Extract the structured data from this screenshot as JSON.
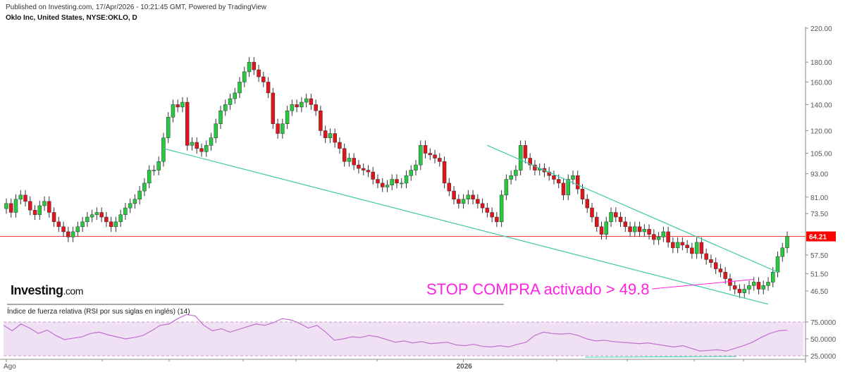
{
  "header": {
    "published": "Published on Investing.com, 17/Apr/2026 - 10:21:45 GMT, Powered by TradingView",
    "instrument": "Oklo Inc, United States, NYSE:OKLO, D"
  },
  "logo": {
    "text": "Investing",
    "suffix": ".com"
  },
  "colors": {
    "up": "#26c940",
    "down": "#e0141b",
    "trend": "#3fc9a8",
    "annotation": "#ff22e0",
    "rsi_line": "#c070d0",
    "rsi_band": "#efe1f3",
    "price_line": "#f04040"
  },
  "chart_data": [
    {
      "type": "candlestick",
      "title": "Oklo Inc, United States, NYSE:OKLO, D",
      "scale": "log",
      "ylim": [
        42,
        225
      ],
      "y_ticks": [
        "220.00",
        "180.00",
        "160.00",
        "140.00",
        "120.00",
        "105.00",
        "93.00",
        "81.00",
        "73.50",
        "57.50",
        "51.50",
        "46.50"
      ],
      "last_price": "64.21",
      "x_labels": [
        {
          "label": "Ago",
          "index": 0
        },
        {
          "label": "2026",
          "index": 96
        }
      ],
      "closes": [
        78,
        74,
        80,
        82,
        79,
        75,
        73,
        77,
        79,
        74,
        70,
        68,
        66,
        64,
        66,
        68,
        70,
        72,
        73,
        74,
        72,
        70,
        68,
        70,
        73,
        76,
        78,
        80,
        84,
        88,
        95,
        95,
        100,
        115,
        130,
        140,
        138,
        142,
        110,
        112,
        108,
        106,
        110,
        115,
        125,
        135,
        140,
        145,
        150,
        160,
        170,
        180,
        172,
        165,
        160,
        150,
        125,
        118,
        125,
        135,
        140,
        138,
        142,
        145,
        140,
        135,
        120,
        115,
        118,
        112,
        108,
        100,
        102,
        98,
        96,
        95,
        94,
        90,
        88,
        86,
        87,
        90,
        88,
        88,
        92,
        95,
        98,
        110,
        105,
        104,
        102,
        100,
        88,
        84,
        80,
        78,
        80,
        82,
        80,
        78,
        76,
        74,
        72,
        70,
        82,
        90,
        92,
        95,
        110,
        102,
        98,
        95,
        96,
        94,
        92,
        90,
        88,
        82,
        90,
        92,
        85,
        80,
        76,
        72,
        68,
        65,
        70,
        74,
        72,
        70,
        68,
        66,
        68,
        66,
        67,
        65,
        63,
        64,
        66,
        62,
        60,
        62,
        61,
        60,
        58,
        62,
        58,
        56,
        55,
        53,
        52,
        50,
        48,
        47,
        46,
        47,
        48,
        49,
        47,
        48,
        49,
        52,
        57,
        60,
        64.21
      ],
      "trendlines": [
        {
          "name": "lower-support",
          "from": [
            33,
            108
          ],
          "to": [
            160,
            43
          ]
        },
        {
          "name": "upper-resistance",
          "from": [
            101,
            110
          ],
          "to": [
            162,
            52
          ]
        }
      ],
      "annotation": {
        "text": "STOP COMPRA activado > 49.8",
        "target_index": 157,
        "target_price": 49.8
      }
    },
    {
      "type": "line",
      "title": "Índice de fuerza relativa (RSI por sus siglas en inglés) (14)",
      "ylim": [
        22,
        88
      ],
      "y_ticks": [
        "75.0000",
        "50.0000",
        "25.0000"
      ],
      "bands": [
        30,
        70
      ],
      "values": [
        70,
        62,
        72,
        66,
        58,
        63,
        55,
        49,
        51,
        53,
        58,
        60,
        56,
        53,
        50,
        52,
        55,
        62,
        70,
        72,
        80,
        86,
        84,
        70,
        62,
        65,
        60,
        64,
        68,
        72,
        70,
        74,
        80,
        78,
        73,
        66,
        70,
        60,
        48,
        50,
        53,
        52,
        55,
        53,
        49,
        45,
        47,
        44,
        46,
        43,
        44,
        45,
        41,
        40,
        42,
        39,
        38,
        40,
        38,
        42,
        45,
        55,
        60,
        58,
        57,
        58,
        55,
        50,
        47,
        48,
        46,
        45,
        44,
        43,
        44,
        42,
        40,
        38,
        40,
        36,
        32,
        33,
        34,
        32,
        36,
        40,
        45,
        52,
        58,
        62,
        63
      ]
    }
  ]
}
